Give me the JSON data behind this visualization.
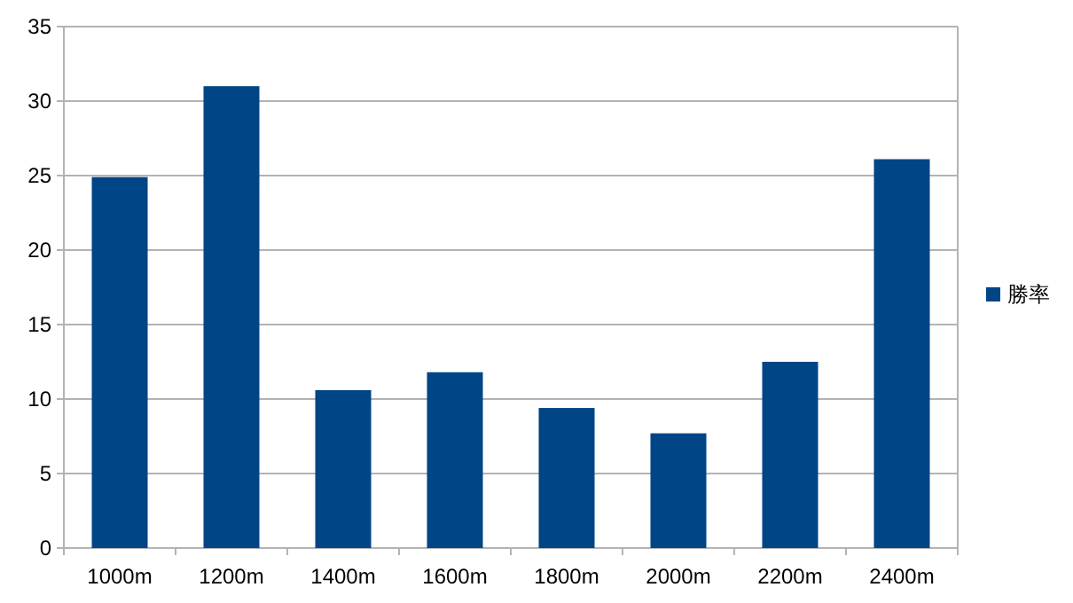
{
  "chart_data": {
    "type": "bar",
    "categories": [
      "1000m",
      "1200m",
      "1400m",
      "1600m",
      "1800m",
      "2000m",
      "2200m",
      "2400m"
    ],
    "series": [
      {
        "name": "勝率",
        "color": "#004586",
        "values": [
          24.9,
          31.0,
          10.6,
          11.8,
          9.4,
          7.7,
          12.5,
          26.1
        ]
      }
    ],
    "ylim": [
      0,
      35
    ],
    "yticks": [
      0,
      5,
      10,
      15,
      20,
      25,
      30,
      35
    ],
    "grid": "y",
    "legend": "right"
  }
}
